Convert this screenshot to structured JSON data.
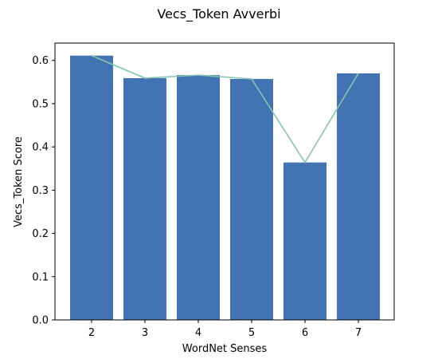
{
  "chart_data": {
    "type": "bar",
    "title": "Vecs_Token Avverbi",
    "xlabel": "WordNet Senses",
    "ylabel": "Vecs_Token Score",
    "categories": [
      "2",
      "3",
      "4",
      "5",
      "6",
      "7"
    ],
    "values": [
      0.611,
      0.559,
      0.566,
      0.557,
      0.364,
      0.57
    ],
    "line_values": [
      0.611,
      0.559,
      0.566,
      0.557,
      0.364,
      0.57
    ],
    "ylim": [
      0,
      0.64
    ],
    "yticks": [
      "0.0",
      "0.1",
      "0.2",
      "0.3",
      "0.4",
      "0.5",
      "0.6"
    ],
    "grid": false,
    "colors": {
      "bar": "#4273b3",
      "line": "#88c4b4",
      "axis": "#000000"
    }
  }
}
